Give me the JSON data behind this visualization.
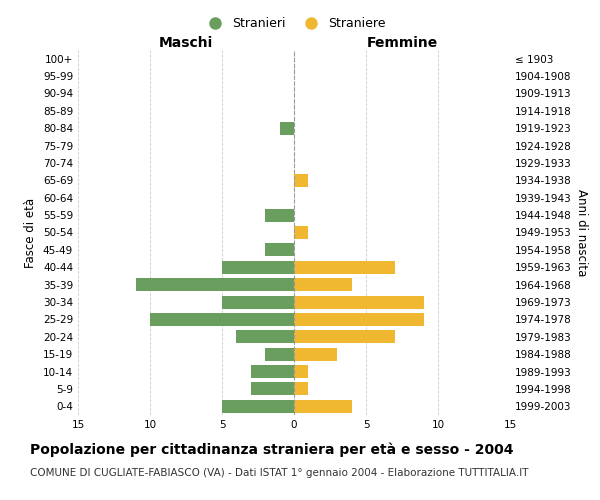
{
  "age_groups": [
    "0-4",
    "5-9",
    "10-14",
    "15-19",
    "20-24",
    "25-29",
    "30-34",
    "35-39",
    "40-44",
    "45-49",
    "50-54",
    "55-59",
    "60-64",
    "65-69",
    "70-74",
    "75-79",
    "80-84",
    "85-89",
    "90-94",
    "95-99",
    "100+"
  ],
  "birth_years": [
    "1999-2003",
    "1994-1998",
    "1989-1993",
    "1984-1988",
    "1979-1983",
    "1974-1978",
    "1969-1973",
    "1964-1968",
    "1959-1963",
    "1954-1958",
    "1949-1953",
    "1944-1948",
    "1939-1943",
    "1934-1938",
    "1929-1933",
    "1924-1928",
    "1919-1923",
    "1914-1918",
    "1909-1913",
    "1904-1908",
    "≤ 1903"
  ],
  "maschi": [
    5,
    3,
    3,
    2,
    4,
    10,
    5,
    11,
    5,
    2,
    0,
    2,
    0,
    0,
    0,
    0,
    1,
    0,
    0,
    0,
    0
  ],
  "femmine": [
    4,
    1,
    1,
    3,
    7,
    9,
    9,
    4,
    7,
    0,
    1,
    0,
    0,
    1,
    0,
    0,
    0,
    0,
    0,
    0,
    0
  ],
  "maschi_color": "#6a9e5e",
  "femmine_color": "#f0b830",
  "background_color": "#ffffff",
  "grid_color": "#cccccc",
  "xlim": 15,
  "xlabel_left": "Maschi",
  "xlabel_right": "Femmine",
  "ylabel_left": "Fasce di età",
  "ylabel_right": "Anni di nascita",
  "title": "Popolazione per cittadinanza straniera per età e sesso - 2004",
  "subtitle": "COMUNE DI CUGLIATE-FABIASCO (VA) - Dati ISTAT 1° gennaio 2004 - Elaborazione TUTTITALIA.IT",
  "legend_stranieri": "Stranieri",
  "legend_straniere": "Straniere",
  "title_fontsize": 10,
  "subtitle_fontsize": 7.5,
  "axis_label_fontsize": 8.5,
  "tick_fontsize": 7.5
}
